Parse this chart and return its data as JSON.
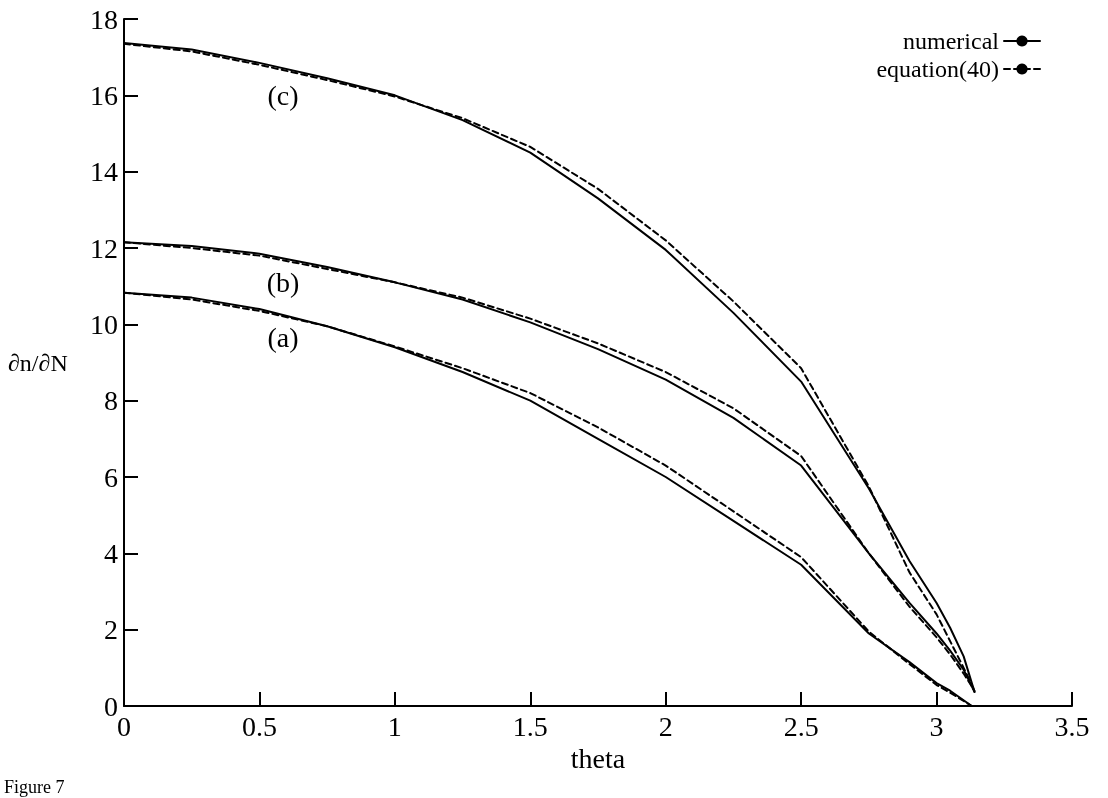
{
  "chart_data": {
    "type": "line",
    "xlabel": "theta",
    "ylabel": "∂n/∂N",
    "xlim": [
      0,
      3.5
    ],
    "xticks": [
      0,
      0.5,
      1,
      1.5,
      2,
      2.5,
      3,
      3.5
    ],
    "ylim": [
      0,
      18
    ],
    "yticks": [
      0,
      2,
      4,
      6,
      8,
      10,
      12,
      14,
      16,
      18
    ],
    "grid": false,
    "legend": "top right",
    "marker": "none",
    "annotations": [
      "(c)",
      "(b)",
      "(a)",
      "Figure 7"
    ],
    "series": [
      {
        "name": "numerical",
        "color": "#000000",
        "line_style": "solid",
        "x": [
          0,
          0.25,
          0.5,
          0.75,
          1.0,
          1.25,
          1.5,
          1.75,
          2.0,
          2.25,
          2.5,
          2.75,
          2.9,
          3.0,
          3.05,
          3.1,
          3.14
        ],
        "values": [
          17.37,
          17.2,
          16.85,
          16.45,
          16.0,
          15.35,
          14.5,
          13.3,
          11.95,
          10.3,
          8.5,
          5.7,
          3.8,
          2.7,
          2.05,
          1.3,
          0.37
        ]
      },
      {
        "name": "equation(40)",
        "color": "#000000",
        "line_style": "dashed",
        "x": [
          0,
          0.25,
          0.5,
          0.75,
          1.0,
          1.25,
          1.5,
          1.75,
          2.0,
          2.25,
          2.5,
          2.75,
          2.9,
          3.0,
          3.05,
          3.1,
          3.14
        ],
        "values": [
          17.35,
          17.15,
          16.8,
          16.4,
          15.97,
          15.4,
          14.65,
          13.55,
          12.2,
          10.6,
          8.85,
          5.75,
          3.5,
          2.4,
          1.7,
          1.0,
          0.4
        ]
      },
      {
        "color": "#000000",
        "line_style": "solid",
        "x": [
          0,
          0.25,
          0.5,
          0.75,
          1.0,
          1.25,
          1.5,
          1.75,
          2.0,
          2.25,
          2.5,
          2.75,
          2.9,
          3.0,
          3.05,
          3.1,
          3.14
        ],
        "values": [
          12.15,
          12.05,
          11.85,
          11.5,
          11.1,
          10.65,
          10.05,
          9.35,
          8.55,
          7.55,
          6.3,
          4.0,
          2.7,
          1.9,
          1.45,
          0.95,
          0.37
        ]
      },
      {
        "color": "#000000",
        "line_style": "dashed",
        "x": [
          0,
          0.25,
          0.5,
          0.75,
          1.0,
          1.25,
          1.5,
          1.75,
          2.0,
          2.25,
          2.5,
          2.75,
          2.9,
          3.0,
          3.05,
          3.1,
          3.14
        ],
        "values": [
          12.15,
          12.0,
          11.8,
          11.45,
          11.1,
          10.7,
          10.15,
          9.5,
          8.75,
          7.8,
          6.55,
          4.0,
          2.6,
          1.8,
          1.35,
          0.85,
          0.4
        ]
      },
      {
        "color": "#000000",
        "line_style": "solid",
        "x": [
          0,
          0.25,
          0.5,
          0.75,
          1.0,
          1.25,
          1.5,
          1.75,
          2.0,
          2.25,
          2.5,
          2.75,
          2.9,
          3.0,
          3.05,
          3.13
        ],
        "values": [
          10.83,
          10.7,
          10.4,
          9.95,
          9.4,
          8.75,
          8.0,
          7.0,
          6.0,
          4.85,
          3.7,
          1.9,
          1.15,
          0.6,
          0.4,
          0
        ]
      },
      {
        "color": "#000000",
        "line_style": "dashed",
        "x": [
          0,
          0.25,
          0.5,
          0.75,
          1.0,
          1.25,
          1.5,
          1.75,
          2.0,
          2.25,
          2.5,
          2.75,
          2.9,
          3.0,
          3.05,
          3.13
        ],
        "values": [
          10.83,
          10.65,
          10.35,
          9.95,
          9.42,
          8.85,
          8.2,
          7.3,
          6.3,
          5.1,
          3.9,
          1.95,
          1.1,
          0.55,
          0.35,
          0
        ]
      }
    ]
  }
}
